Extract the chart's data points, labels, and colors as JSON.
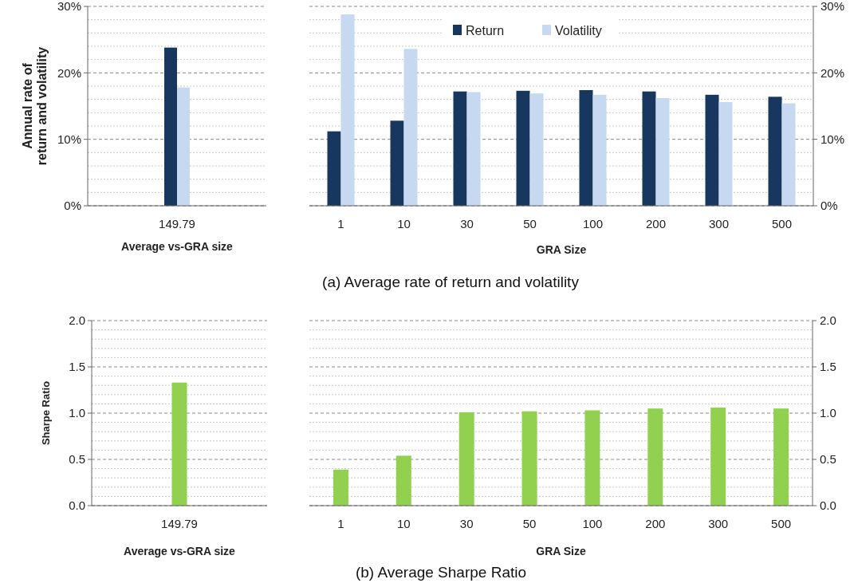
{
  "chart_data": [
    {
      "type": "bar",
      "ylabel": "Annual rate of return and volatility",
      "xlabel": "Average vs-GRA size",
      "categories": [
        "149.79"
      ],
      "series": [
        {
          "color": "#17375e",
          "values": [
            23.8
          ]
        },
        {
          "color": "#c6d9f1",
          "values": [
            17.8
          ]
        }
      ],
      "ylim": [
        0,
        30
      ],
      "yticks": [
        {
          "value": 0,
          "label": "0%"
        },
        {
          "value": 2,
          "label": null
        },
        {
          "value": 4,
          "label": null
        },
        {
          "value": 6,
          "label": null
        },
        {
          "value": 8,
          "label": null
        },
        {
          "value": 10,
          "label": "10%"
        },
        {
          "value": 12,
          "label": null
        },
        {
          "value": 14,
          "label": null
        },
        {
          "value": 16,
          "label": null
        },
        {
          "value": 18,
          "label": null
        },
        {
          "value": 20,
          "label": "20%"
        },
        {
          "value": 22,
          "label": null
        },
        {
          "value": 24,
          "label": null
        },
        {
          "value": 26,
          "label": null
        },
        {
          "value": 28,
          "label": null
        },
        {
          "value": 30,
          "label": "30%"
        }
      ],
      "grid": "y",
      "legend": false
    },
    {
      "type": "bar",
      "xlabel": "GRA Size",
      "categories": [
        "1",
        "10",
        "30",
        "50",
        "100",
        "200",
        "300",
        "500"
      ],
      "series": [
        {
          "name": "Return",
          "color": "#17375e",
          "axis": "y2",
          "values": [
            11.2,
            12.8,
            17.2,
            17.3,
            17.4,
            17.2,
            16.7,
            16.4
          ]
        },
        {
          "name": "Volatility",
          "color": "#c6d9f1",
          "axis": "y2",
          "values": [
            28.8,
            23.6,
            17.1,
            16.9,
            16.7,
            16.2,
            15.6,
            15.4
          ]
        }
      ],
      "y2lim": [
        0,
        30
      ],
      "y2ticks": [
        {
          "value": 0,
          "label": "0%"
        },
        {
          "value": 2,
          "label": null
        },
        {
          "value": 4,
          "label": null
        },
        {
          "value": 6,
          "label": null
        },
        {
          "value": 8,
          "label": null
        },
        {
          "value": 10,
          "label": "10%"
        },
        {
          "value": 12,
          "label": null
        },
        {
          "value": 14,
          "label": null
        },
        {
          "value": 16,
          "label": null
        },
        {
          "value": 18,
          "label": null
        },
        {
          "value": 20,
          "label": "20%"
        },
        {
          "value": 22,
          "label": null
        },
        {
          "value": 24,
          "label": null
        },
        {
          "value": 26,
          "label": null
        },
        {
          "value": 28,
          "label": null
        },
        {
          "value": 30,
          "label": "30%"
        }
      ],
      "grid": "y",
      "legend": "top",
      "annotations": [
        "(a) Average rate of return and volatility"
      ]
    },
    {
      "type": "bar",
      "ylabel": "Sharpe Ratio",
      "xlabel": "Average vs-GRA size",
      "categories": [
        "149.79"
      ],
      "series": [
        {
          "color": "#92d050",
          "values": [
            1.33
          ]
        }
      ],
      "ylim": [
        0,
        2
      ],
      "yticks": [
        {
          "value": 0,
          "label": "0.0"
        },
        {
          "value": 0.1,
          "label": null
        },
        {
          "value": 0.2,
          "label": null
        },
        {
          "value": 0.3,
          "label": null
        },
        {
          "value": 0.4,
          "label": null
        },
        {
          "value": 0.5,
          "label": "0.5"
        },
        {
          "value": 0.6,
          "label": null
        },
        {
          "value": 0.7,
          "label": null
        },
        {
          "value": 0.8,
          "label": null
        },
        {
          "value": 0.9,
          "label": null
        },
        {
          "value": 1,
          "label": "1.0"
        },
        {
          "value": 1.1,
          "label": null
        },
        {
          "value": 1.2,
          "label": null
        },
        {
          "value": 1.3,
          "label": null
        },
        {
          "value": 1.4,
          "label": null
        },
        {
          "value": 1.5,
          "label": "1.5"
        },
        {
          "value": 1.6,
          "label": null
        },
        {
          "value": 1.7,
          "label": null
        },
        {
          "value": 1.8,
          "label": null
        },
        {
          "value": 1.9,
          "label": null
        },
        {
          "value": 2,
          "label": "2.0"
        }
      ],
      "grid": "y",
      "legend": false
    },
    {
      "type": "bar",
      "xlabel": "GRA Size",
      "categories": [
        "1",
        "10",
        "30",
        "50",
        "100",
        "200",
        "300",
        "500"
      ],
      "series": [
        {
          "color": "#92d050",
          "axis": "y2",
          "values": [
            0.39,
            0.54,
            1.01,
            1.02,
            1.03,
            1.05,
            1.06,
            1.05
          ]
        }
      ],
      "y2lim": [
        0,
        2
      ],
      "y2ticks": [
        {
          "value": 0,
          "label": "0.0"
        },
        {
          "value": 0.1,
          "label": null
        },
        {
          "value": 0.2,
          "label": null
        },
        {
          "value": 0.3,
          "label": null
        },
        {
          "value": 0.4,
          "label": null
        },
        {
          "value": 0.5,
          "label": "0.5"
        },
        {
          "value": 0.6,
          "label": null
        },
        {
          "value": 0.7,
          "label": null
        },
        {
          "value": 0.8,
          "label": null
        },
        {
          "value": 0.9,
          "label": null
        },
        {
          "value": 1,
          "label": "1.0"
        },
        {
          "value": 1.1,
          "label": null
        },
        {
          "value": 1.2,
          "label": null
        },
        {
          "value": 1.3,
          "label": null
        },
        {
          "value": 1.4,
          "label": null
        },
        {
          "value": 1.5,
          "label": "1.5"
        },
        {
          "value": 1.6,
          "label": null
        },
        {
          "value": 1.7,
          "label": null
        },
        {
          "value": 1.8,
          "label": null
        },
        {
          "value": 1.9,
          "label": null
        },
        {
          "value": 2,
          "label": "2.0"
        }
      ],
      "grid": "y",
      "legend": false,
      "annotations": [
        "(b) Average Sharpe Ratio"
      ]
    }
  ]
}
